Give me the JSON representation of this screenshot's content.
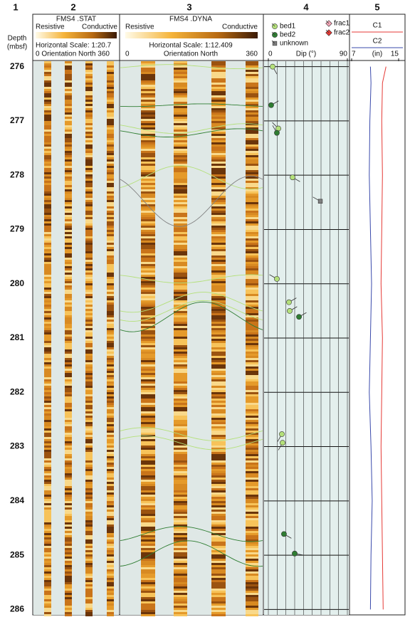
{
  "chart_data": {
    "type": "well-log",
    "column_numbers": [
      "1",
      "2",
      "3",
      "4",
      "5"
    ],
    "depth_title": "Depth",
    "depth_unit": "(mbsf)",
    "ylim": [
      275.9,
      286.1
    ],
    "yticks": [
      276,
      277,
      278,
      279,
      280,
      281,
      282,
      283,
      284,
      285,
      286
    ],
    "static_image": {
      "title": "FMS4 .STAT",
      "low_label": "Resistive",
      "high_label": "Conductive",
      "scale_label": "Horizontal Scale: 1:20.7",
      "orientation_label": "0 Orientation North 360"
    },
    "dynamic_image": {
      "title": "FMS4 .DYNA",
      "low_label": "Resistive",
      "high_label": "Conductive",
      "scale_label": "Horizontal Scale:  1:12.409",
      "orientation_label": "Orientation North",
      "orientation_start": "0",
      "orientation_end": "360"
    },
    "dips": {
      "xlabel": "Dip (°)",
      "xlim": [
        0,
        90
      ],
      "xticks": [
        0,
        90
      ],
      "series": [
        {
          "name": "bed1",
          "color": "#b4e07a",
          "marker": "circle",
          "depth": [
            276.0,
            277.14,
            278.04,
            279.91,
            280.34,
            280.5,
            282.77,
            282.93
          ],
          "values": [
            4.9,
            11.4,
            27.6,
            9.7,
            23.5,
            24.3,
            15.4,
            16.2
          ],
          "azimuth": [
            150,
            315,
            120,
            300,
            60,
            60,
            210,
            210
          ]
        },
        {
          "name": "bed2",
          "color": "#2e7d32",
          "marker": "circle",
          "depth": [
            276.71,
            277.22,
            280.61,
            284.61,
            284.97
          ],
          "values": [
            3.2,
            9.7,
            34.9,
            17.8,
            30.0
          ],
          "azimuth": [
            60,
            330,
            60,
            120,
            100
          ]
        },
        {
          "name": "unknown",
          "color": "#808080",
          "marker": "square",
          "depth": [
            278.48
          ],
          "values": [
            59.2
          ],
          "azimuth": [
            300
          ]
        },
        {
          "name": "frac1",
          "color": "#f4a6b6",
          "marker": "diamond",
          "depth": [],
          "values": [],
          "azimuth": []
        },
        {
          "name": "frac2",
          "color": "#e53935",
          "marker": "diamond",
          "depth": [],
          "values": [],
          "azimuth": []
        }
      ]
    },
    "caliper": {
      "unit_label": "(in)",
      "xlim": [
        7,
        15
      ],
      "xticks": [
        7,
        15
      ],
      "x": [
        276,
        276.3,
        277,
        278,
        279,
        280,
        281,
        282,
        283,
        284,
        285,
        286
      ],
      "series": [
        {
          "name": "C1",
          "color": "#e53935",
          "values": [
            12.85,
            12.25,
            12.13,
            12.25,
            12.13,
            12.01,
            12.25,
            12.13,
            12.01,
            12.13,
            12.25,
            12.37
          ]
        },
        {
          "name": "C2",
          "color": "#3949ab",
          "values": [
            10.2,
            10.3,
            10.1,
            10.0,
            10.2,
            10.4,
            10.2,
            10.0,
            10.3,
            10.5,
            10.3,
            10.2
          ]
        }
      ]
    }
  }
}
